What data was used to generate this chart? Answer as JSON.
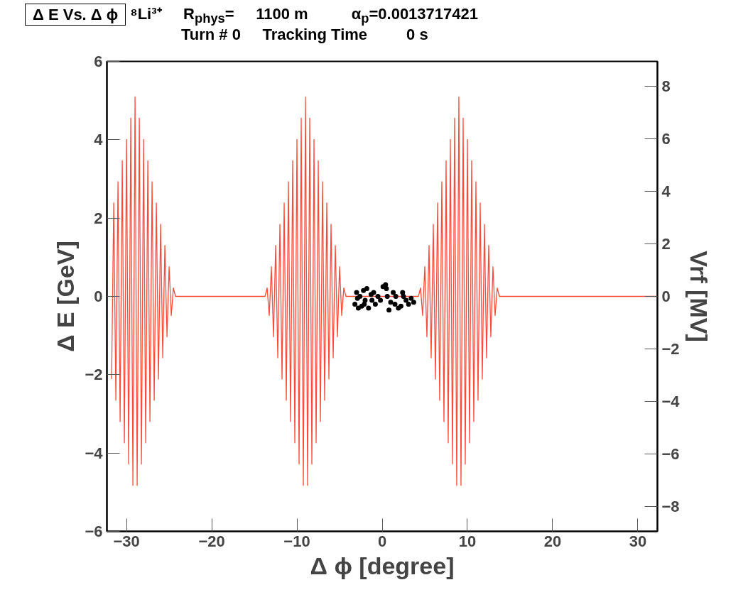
{
  "chart_data": {
    "type": "line",
    "title": "Δ E Vs. Δ ϕ",
    "annotations": [
      "⁸Li³⁺     R$_{phys}$=     1100 m          α$_{p}$=0.0013717421",
      "Turn # 0     Tracking Time         0 s"
    ],
    "xlabel": "Δ ϕ [degree]",
    "ylabel": "Δ E [GeV]",
    "y2label": "Vrf [MV]",
    "xlim": [
      -32.3,
      32.3
    ],
    "xticks": [
      -30,
      -20,
      -10,
      0,
      10,
      20,
      30
    ],
    "ylim": [
      -6,
      6
    ],
    "yticks": [
      -6,
      -4,
      -2,
      0,
      2,
      4,
      6
    ],
    "y2lim": [
      -8.95,
      8.95
    ],
    "y2ticks": [
      -8,
      -6,
      -4,
      -2,
      0,
      2,
      4,
      6,
      8
    ],
    "grid": false,
    "series": [
      {
        "axis": "y2",
        "color": "#ff4a3a",
        "line_style": "solid",
        "x": [
          -31.75,
          -31.5,
          -31.25,
          -31.0,
          -30.75,
          -30.5,
          -30.25,
          -30.0,
          -29.75,
          -29.5,
          -29.25,
          -29.0,
          -28.75,
          -28.5,
          -28.25,
          -28.0,
          -27.75,
          -27.5,
          -27.25,
          -27.0,
          -26.75,
          -26.5,
          -26.25,
          -26.0,
          -25.75,
          -25.5,
          -25.25,
          -25.0,
          -24.75,
          -24.5,
          -24.25,
          -13.75,
          -13.5,
          -13.25,
          -13.0,
          -12.75,
          -12.5,
          -12.25,
          -12.0,
          -11.75,
          -11.5,
          -11.25,
          -11.0,
          -10.75,
          -10.5,
          -10.25,
          -10.0,
          -9.75,
          -9.5,
          -9.25,
          -9.0,
          -8.75,
          -8.5,
          -8.25,
          -8.0,
          -7.75,
          -7.5,
          -7.25,
          -7.0,
          -6.75,
          -6.5,
          -6.25,
          -6.0,
          -5.75,
          -5.5,
          -5.25,
          -5.0,
          -4.75,
          -4.5,
          -4.25,
          4.25,
          4.5,
          4.75,
          5.0,
          5.25,
          5.5,
          5.75,
          6.0,
          6.25,
          6.5,
          6.75,
          7.0,
          7.25,
          7.5,
          7.75,
          8.0,
          8.25,
          8.5,
          8.75,
          9.0,
          9.25,
          9.5,
          9.75,
          10.0,
          10.25,
          10.5,
          10.75,
          11.0,
          11.25,
          11.5,
          11.75,
          12.0,
          12.25,
          12.5,
          12.75,
          13.0,
          13.25,
          13.5,
          13.75,
          32.3
        ],
        "values": [
          -3.15,
          3.56,
          -3.96,
          4.37,
          -4.77,
          5.17,
          -5.58,
          5.98,
          -6.39,
          6.79,
          -7.2,
          7.6,
          -7.2,
          6.79,
          -6.39,
          5.98,
          -5.58,
          5.17,
          -4.77,
          4.37,
          -3.96,
          3.56,
          -3.15,
          2.75,
          -2.34,
          1.94,
          -1.54,
          1.13,
          -0.73,
          0.32,
          0,
          0,
          0.32,
          -0.73,
          1.13,
          -1.54,
          1.94,
          -2.34,
          2.75,
          -3.15,
          3.56,
          -3.96,
          4.37,
          -4.77,
          5.17,
          -5.58,
          5.98,
          -6.39,
          6.79,
          -7.2,
          7.6,
          -7.2,
          6.79,
          -6.39,
          5.98,
          -5.58,
          5.17,
          -4.77,
          4.37,
          -3.96,
          3.56,
          -3.15,
          2.75,
          -2.34,
          1.94,
          -1.54,
          1.13,
          -0.73,
          0.32,
          0,
          0,
          0.32,
          -0.73,
          1.13,
          -1.54,
          1.94,
          -2.34,
          2.75,
          -3.15,
          3.56,
          -3.96,
          4.37,
          -4.77,
          5.17,
          -5.58,
          5.98,
          -6.39,
          6.79,
          -7.2,
          7.6,
          -7.2,
          6.79,
          -6.39,
          5.98,
          -5.58,
          5.17,
          -4.77,
          4.37,
          -3.96,
          3.56,
          -3.15,
          2.75,
          -2.34,
          1.94,
          -1.54,
          1.13,
          -0.73,
          0.32,
          0,
          0
        ]
      },
      {
        "type": "scatter",
        "color": "#000000",
        "marker": "circle",
        "x": [
          -3.2,
          -3.0,
          -2.8,
          -2.6,
          -2.4,
          -2.2,
          -2.0,
          -1.8,
          -1.6,
          -1.3,
          -1.0,
          -0.8,
          -0.5,
          -0.2,
          0.1,
          0.4,
          0.6,
          0.8,
          1.0,
          1.3,
          1.6,
          1.9,
          2.2,
          2.5,
          2.8,
          3.1,
          3.4,
          3.7,
          -2.9,
          -2.1,
          -1.2,
          0.5,
          1.5,
          2.4
        ],
        "values": [
          -0.2,
          0.1,
          -0.3,
          0.0,
          -0.25,
          0.15,
          -0.1,
          0.2,
          -0.3,
          0.05,
          0.1,
          -0.2,
          0.0,
          -0.1,
          0.25,
          0.3,
          0.0,
          -0.35,
          -0.15,
          0.1,
          0.0,
          -0.3,
          -0.25,
          0.0,
          -0.1,
          -0.2,
          -0.05,
          -0.15,
          -0.05,
          -0.2,
          -0.1,
          0.2,
          -0.2,
          0.1
        ]
      }
    ]
  }
}
